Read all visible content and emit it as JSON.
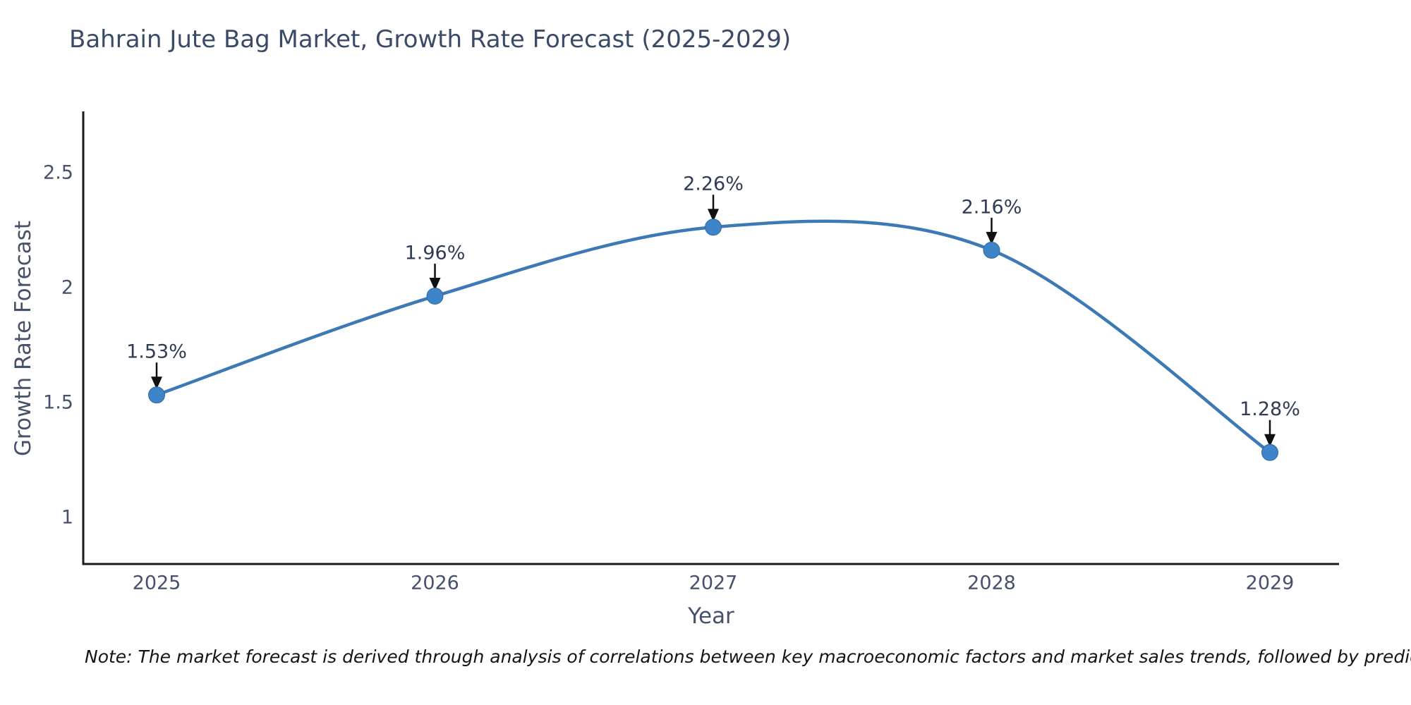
{
  "note": {
    "text": "Note: The market forecast is derived through analysis of correlations between key macroeconomic factors and market sales trends, followed by predictive modeling to project future sales"
  },
  "chart_data": {
    "type": "line",
    "title": "Bahrain Jute Bag Market, Growth Rate Forecast (2025-2029)",
    "xlabel": "Year",
    "ylabel": "Growth Rate Forecast",
    "x": [
      2025,
      2026,
      2027,
      2028,
      2029
    ],
    "y": [
      1.53,
      1.96,
      2.26,
      2.16,
      1.28
    ],
    "point_labels": [
      "1.53%",
      "1.96%",
      "2.26%",
      "2.16%",
      "1.28%"
    ],
    "xtick_labels": [
      "2025",
      "2026",
      "2027",
      "2028",
      "2029"
    ],
    "ytick_labels": [
      "2.5",
      "2",
      "1.5",
      "1"
    ],
    "ytick_values": [
      2.5,
      2,
      1.5,
      1
    ],
    "ylim": [
      0.79,
      2.76
    ],
    "line_shape": "spline",
    "grid": false,
    "legend": false,
    "line_color": "#3d7ab5",
    "marker_color": "#3e84c8",
    "marker_edge_color": "#35699e",
    "arrow_color": "#111111",
    "axis_color": "#1a1a1a"
  }
}
